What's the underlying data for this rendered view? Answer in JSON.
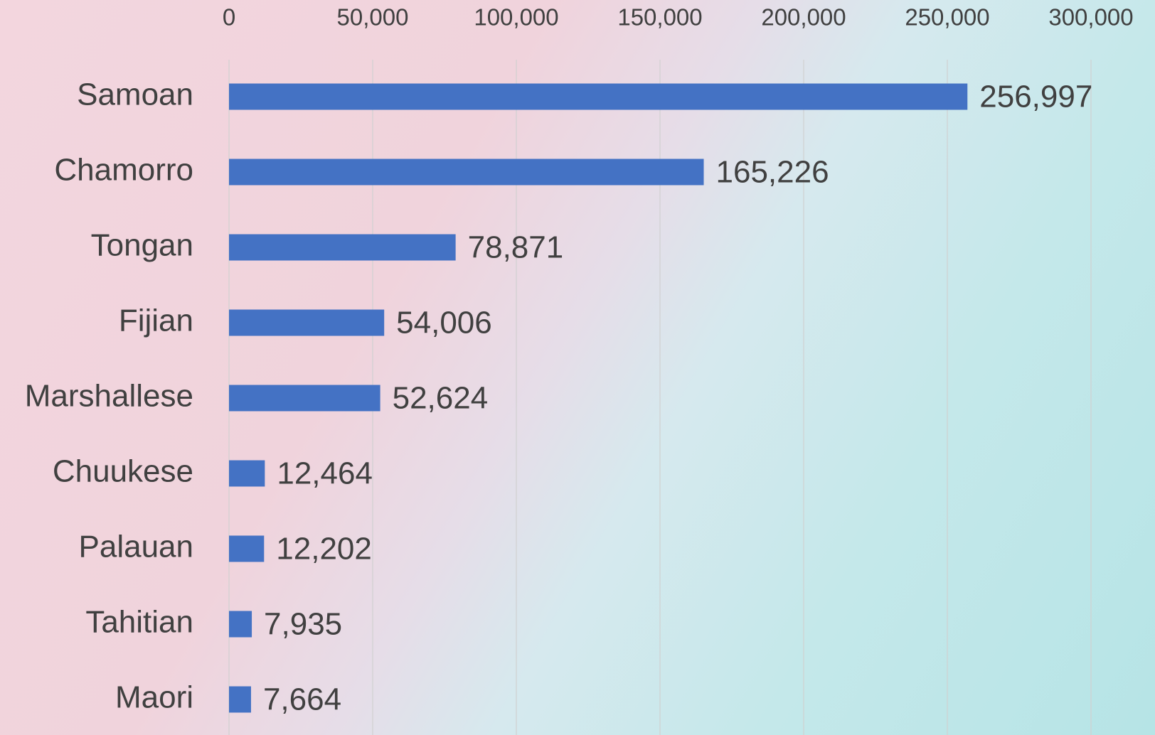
{
  "chart_data": {
    "type": "bar",
    "orientation": "horizontal",
    "categories": [
      "Samoan",
      "Chamorro",
      "Tongan",
      "Fijian",
      "Marshallese",
      "Chuukese",
      "Palauan",
      "Tahitian",
      "Maori"
    ],
    "values": [
      256997,
      165226,
      78871,
      54006,
      52624,
      12464,
      12202,
      7935,
      7664
    ],
    "value_labels": [
      "256,997",
      "165,226",
      "78,871",
      "54,006",
      "52,624",
      "12,464",
      "12,202",
      "7,935",
      "7,664"
    ],
    "color": "#4472c4",
    "xlim": [
      0,
      300000
    ],
    "xticks": [
      0,
      {
        "value": 50000,
        "label": "50,000"
      },
      {
        "value": 100000,
        "label": "100,000"
      },
      {
        "value": 150000,
        "label": "150,000"
      },
      {
        "value": 200000,
        "label": "200,000"
      },
      {
        "value": 250000,
        "label": "250,000"
      },
      {
        "value": 300000,
        "label": "300,000"
      }
    ],
    "grid": true
  }
}
